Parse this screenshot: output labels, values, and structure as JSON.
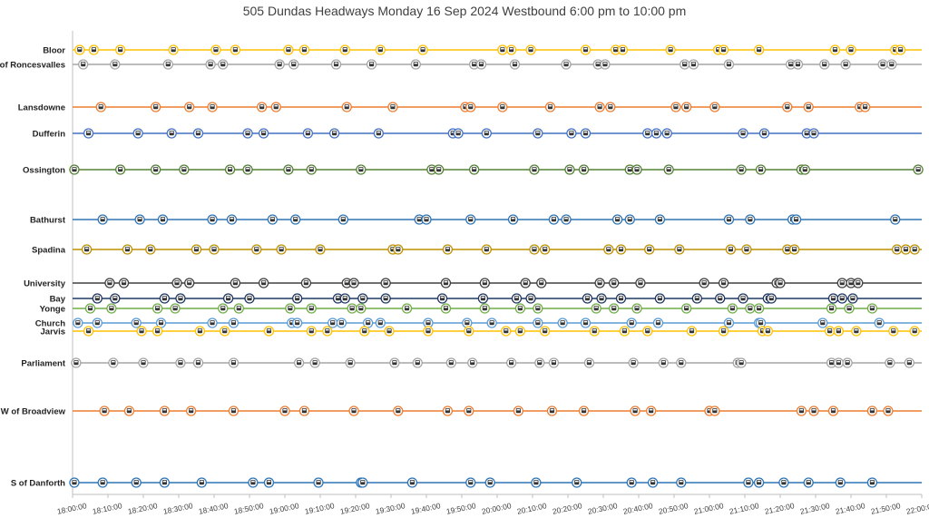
{
  "title": "505 Dundas Headways Monday 16 Sep 2024 Westbound 6:00 pm to 10:00 pm",
  "chart_data": {
    "type": "scatter",
    "title": "505 Dundas Headways Monday 16 Sep 2024 Westbound 6:00 pm to 10:00 pm",
    "x_axis": {
      "start": "18:00:00",
      "end": "22:00:00",
      "tick_labels": [
        "18:00:00",
        "18:10:00",
        "18:20:00",
        "18:30:00",
        "18:40:00",
        "18:50:00",
        "19:00:00",
        "19:10:00",
        "19:20:00",
        "19:30:00",
        "19:40:00",
        "19:50:00",
        "20:00:00",
        "20:10:00",
        "20:20:00",
        "20:30:00",
        "20:40:00",
        "20:50:00",
        "21:00:00",
        "21:10:00",
        "21:20:00",
        "21:30:00",
        "21:40:00",
        "21:50:00",
        "22:00:00"
      ]
    },
    "grid": false,
    "legend": "none",
    "series": [
      {
        "name": "Bloor",
        "color": "#FFC000",
        "times": [
          "18:02:00",
          "18:06:00",
          "18:13:30",
          "18:28:30",
          "18:40:30",
          "18:46:00",
          "19:01:00",
          "19:05:30",
          "19:17:00",
          "19:27:00",
          "19:39:00",
          "20:01:30",
          "20:04:00",
          "20:09:30",
          "20:25:00",
          "20:33:30",
          "20:35:30",
          "20:49:00",
          "21:02:30",
          "21:04:00",
          "21:14:00",
          "21:35:30",
          "21:40:00",
          "21:52:30",
          "21:54:00"
        ]
      },
      {
        "name": "E of Roncesvalles",
        "color": "#A5A5A5",
        "times": [
          "18:03:00",
          "18:12:00",
          "18:27:00",
          "18:39:00",
          "18:42:30",
          "18:58:30",
          "19:02:30",
          "19:14:30",
          "19:24:30",
          "19:37:00",
          "19:53:30",
          "19:55:30",
          "20:05:00",
          "20:19:30",
          "20:28:30",
          "20:30:30",
          "20:53:00",
          "20:55:30",
          "21:05:30",
          "21:23:00",
          "21:25:00",
          "21:32:30",
          "21:38:30",
          "21:49:00",
          "21:51:30"
        ]
      },
      {
        "name": "Lansdowne",
        "color": "#ED7D31",
        "times": [
          "18:08:00",
          "18:23:30",
          "18:33:00",
          "18:39:30",
          "18:53:30",
          "18:57:30",
          "19:17:30",
          "19:30:30",
          "19:51:00",
          "19:52:30",
          "20:01:30",
          "20:15:00",
          "20:29:00",
          "20:32:00",
          "20:50:30",
          "20:53:30",
          "21:01:30",
          "21:22:00",
          "21:28:00",
          "21:42:30",
          "21:44:00"
        ]
      },
      {
        "name": "Dufferin",
        "color": "#4472C4",
        "times": [
          "18:04:30",
          "18:18:30",
          "18:28:00",
          "18:35:30",
          "18:49:30",
          "18:54:00",
          "19:06:30",
          "19:14:00",
          "19:26:30",
          "19:47:30",
          "19:49:00",
          "19:57:00",
          "20:11:30",
          "20:21:00",
          "20:25:00",
          "20:42:30",
          "20:45:00",
          "20:48:00",
          "21:09:30",
          "21:15:30",
          "21:27:30",
          "21:29:30"
        ]
      },
      {
        "name": "Ossington",
        "color": "#548235",
        "times": [
          "18:00:30",
          "18:13:30",
          "18:23:30",
          "18:31:30",
          "18:44:30",
          "18:49:30",
          "19:01:00",
          "19:07:30",
          "19:21:30",
          "19:41:30",
          "19:43:30",
          "19:53:30",
          "20:10:30",
          "20:20:30",
          "20:24:30",
          "20:37:30",
          "20:39:30",
          "20:48:30",
          "21:09:00",
          "21:14:30",
          "21:26:00",
          "21:27:00",
          "21:59:00"
        ]
      },
      {
        "name": "Bathurst",
        "color": "#2E75B6",
        "times": [
          "18:08:30",
          "18:19:00",
          "18:25:30",
          "18:39:30",
          "18:45:00",
          "18:56:30",
          "19:03:00",
          "19:16:30",
          "19:38:00",
          "19:40:00",
          "19:52:30",
          "20:04:30",
          "20:16:00",
          "20:19:30",
          "20:34:00",
          "20:37:30",
          "20:46:00",
          "21:05:30",
          "21:11:30",
          "21:23:30",
          "21:24:30",
          "21:52:30"
        ]
      },
      {
        "name": "Spadina",
        "color": "#BF9000",
        "times": [
          "18:04:00",
          "18:15:30",
          "18:22:00",
          "18:35:00",
          "18:40:00",
          "18:52:00",
          "18:59:00",
          "19:10:00",
          "19:30:30",
          "19:32:00",
          "19:46:00",
          "19:57:00",
          "20:10:30",
          "20:13:30",
          "20:31:30",
          "20:35:00",
          "20:43:00",
          "20:51:30",
          "21:06:00",
          "21:10:30",
          "21:22:00",
          "21:24:00",
          "21:53:00",
          "21:55:30",
          "21:58:00"
        ]
      },
      {
        "name": "University",
        "color": "#404040",
        "times": [
          "18:10:30",
          "18:14:30",
          "18:29:30",
          "18:33:00",
          "18:46:00",
          "18:54:00",
          "19:06:00",
          "19:17:30",
          "19:19:30",
          "19:28:30",
          "19:45:30",
          "19:56:30",
          "20:08:00",
          "20:12:30",
          "20:29:00",
          "20:33:00",
          "20:40:30",
          "20:58:30",
          "21:04:00",
          "21:19:00",
          "21:20:00",
          "21:37:30",
          "21:40:00",
          "21:42:00"
        ]
      },
      {
        "name": "Bay",
        "color": "#1F3864",
        "times": [
          "18:07:00",
          "18:12:00",
          "18:26:00",
          "18:30:30",
          "18:44:00",
          "18:50:00",
          "19:03:30",
          "19:15:00",
          "19:17:00",
          "19:22:00",
          "19:28:30",
          "19:44:30",
          "19:56:00",
          "20:05:30",
          "20:09:30",
          "20:25:30",
          "20:29:30",
          "20:35:00",
          "20:46:00",
          "20:56:30",
          "21:03:00",
          "21:09:30",
          "21:16:30",
          "21:17:30",
          "21:35:00",
          "21:37:30",
          "21:40:30"
        ]
      },
      {
        "name": "Yonge",
        "color": "#70AD47",
        "times": [
          "18:05:00",
          "18:11:00",
          "18:24:00",
          "18:29:00",
          "18:42:30",
          "18:47:00",
          "19:01:30",
          "19:07:30",
          "19:19:00",
          "19:21:30",
          "19:34:30",
          "19:45:30",
          "19:56:30",
          "20:06:30",
          "20:11:30",
          "20:28:00",
          "20:33:00",
          "20:39:30",
          "20:53:30",
          "21:06:30",
          "21:11:30",
          "21:14:00",
          "21:34:30",
          "21:39:30",
          "21:46:00"
        ]
      },
      {
        "name": "Church",
        "color": "#5B9BD5",
        "times": [
          "18:01:30",
          "18:07:00",
          "18:18:00",
          "18:25:00",
          "18:39:30",
          "18:45:30",
          "19:02:00",
          "19:03:30",
          "19:13:30",
          "19:16:00",
          "19:23:30",
          "19:27:00",
          "19:40:30",
          "19:51:30",
          "19:58:30",
          "20:11:30",
          "20:18:30",
          "20:25:00",
          "20:38:00",
          "20:45:30",
          "21:05:30",
          "21:14:00",
          "21:14:30",
          "21:32:00",
          "21:48:00"
        ]
      },
      {
        "name": "Jarvis",
        "color": "#FFC000",
        "times": [
          "18:04:30",
          "18:19:30",
          "18:24:00",
          "18:36:00",
          "18:43:00",
          "18:55:30",
          "19:07:30",
          "19:12:00",
          "19:22:30",
          "19:29:30",
          "19:40:30",
          "19:52:00",
          "20:02:30",
          "20:06:30",
          "20:13:30",
          "20:27:30",
          "20:36:00",
          "20:42:30",
          "20:55:00",
          "21:04:00",
          "21:15:00",
          "21:16:30",
          "21:34:00",
          "21:36:30",
          "21:41:30",
          "21:52:00",
          "21:58:00"
        ]
      },
      {
        "name": "Parliament",
        "color": "#A5A5A5",
        "times": [
          "18:01:00",
          "18:11:30",
          "18:20:00",
          "18:30:30",
          "18:35:30",
          "18:45:30",
          "19:04:00",
          "19:08:30",
          "19:18:30",
          "19:31:00",
          "19:37:30",
          "19:47:00",
          "19:53:00",
          "20:04:00",
          "20:12:00",
          "20:16:00",
          "20:26:00",
          "20:38:30",
          "20:47:00",
          "20:52:00",
          "21:08:00",
          "21:09:00",
          "21:34:30",
          "21:36:30",
          "21:39:00",
          "21:51:00",
          "21:56:30"
        ]
      },
      {
        "name": "W of Broadview",
        "color": "#ED7D31",
        "times": [
          "18:09:00",
          "18:16:00",
          "18:26:00",
          "18:33:30",
          "18:45:30",
          "19:00:00",
          "19:05:30",
          "19:19:30",
          "19:32:00",
          "19:46:00",
          "19:52:00",
          "20:06:00",
          "20:15:30",
          "20:24:30",
          "20:39:00",
          "20:43:30",
          "21:00:00",
          "21:01:30",
          "21:26:00",
          "21:29:30",
          "21:35:00",
          "21:46:00",
          "21:50:30"
        ]
      },
      {
        "name": "S of Danforth",
        "color": "#2E75B6",
        "times": [
          "18:00:30",
          "18:08:30",
          "18:18:00",
          "18:26:00",
          "18:36:30",
          "18:51:00",
          "18:55:30",
          "19:09:30",
          "19:21:30",
          "19:22:00",
          "19:36:00",
          "19:52:30",
          "19:58:00",
          "20:11:00",
          "20:22:30",
          "20:38:00",
          "20:44:00",
          "20:52:00",
          "21:11:00",
          "21:14:00",
          "21:21:00",
          "21:28:00",
          "21:37:00",
          "21:46:00"
        ]
      }
    ]
  }
}
